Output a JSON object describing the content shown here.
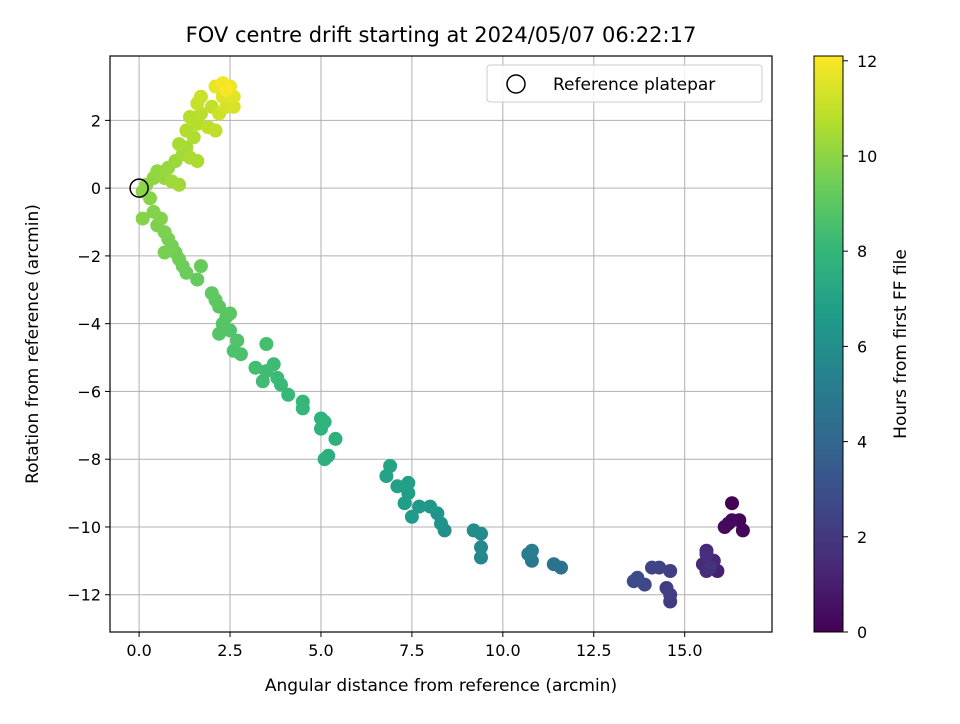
{
  "chart_data": {
    "type": "scatter",
    "title": "FOV centre drift starting at 2024/05/07 06:22:17",
    "xlabel": "Angular distance from reference (arcmin)",
    "ylabel": "Rotation from reference (arcmin)",
    "xlim": [
      -0.8,
      17.4
    ],
    "ylim": [
      -13.1,
      3.9
    ],
    "x_ticks": [
      0.0,
      2.5,
      5.0,
      7.5,
      10.0,
      12.5,
      15.0
    ],
    "x_tick_labels": [
      "0.0",
      "2.5",
      "5.0",
      "7.5",
      "10.0",
      "12.5",
      "15.0"
    ],
    "y_ticks": [
      2,
      0,
      -2,
      -4,
      -6,
      -8,
      -10,
      -12
    ],
    "y_tick_labels": [
      "2",
      "0",
      "−2",
      "−4",
      "−6",
      "−8",
      "−10",
      "−12"
    ],
    "grid": true,
    "legend_position": "top-right",
    "legend": [
      {
        "label": "Reference platepar",
        "marker": "open-circle"
      }
    ],
    "reference_point": {
      "x": 0,
      "y": 0
    },
    "colorbar": {
      "label": "Hours from first FF file",
      "range": [
        0,
        12.1
      ],
      "ticks": [
        0,
        2,
        4,
        6,
        8,
        10,
        12
      ],
      "tick_labels": [
        "0",
        "2",
        "4",
        "6",
        "8",
        "10",
        "12"
      ],
      "colormap": "viridis"
    },
    "colormap_stops": [
      "#440154",
      "#482878",
      "#3e4989",
      "#31688e",
      "#26828e",
      "#1f9e89",
      "#35b779",
      "#6ece58",
      "#b5de2b",
      "#fde725"
    ],
    "points": [
      {
        "x": 16.3,
        "y": -9.3,
        "t": 0.05
      },
      {
        "x": 16.2,
        "y": -9.9,
        "t": 0.1
      },
      {
        "x": 16.5,
        "y": -9.8,
        "t": 0.15
      },
      {
        "x": 16.6,
        "y": -10.1,
        "t": 0.2
      },
      {
        "x": 16.3,
        "y": -9.8,
        "t": 0.25
      },
      {
        "x": 16.1,
        "y": -10.0,
        "t": 0.3
      },
      {
        "x": 15.9,
        "y": -11.3,
        "t": 1.1
      },
      {
        "x": 15.8,
        "y": -11.0,
        "t": 1.3
      },
      {
        "x": 15.6,
        "y": -10.7,
        "t": 1.4
      },
      {
        "x": 15.5,
        "y": -11.1,
        "t": 1.5
      },
      {
        "x": 15.6,
        "y": -11.3,
        "t": 1.6
      },
      {
        "x": 15.6,
        "y": -10.8,
        "t": 1.65
      },
      {
        "x": 15.7,
        "y": -11.2,
        "t": 1.7
      },
      {
        "x": 14.6,
        "y": -12.2,
        "t": 2.1
      },
      {
        "x": 14.6,
        "y": -12.0,
        "t": 2.15
      },
      {
        "x": 14.5,
        "y": -11.8,
        "t": 2.2
      },
      {
        "x": 14.6,
        "y": -11.3,
        "t": 2.3
      },
      {
        "x": 14.3,
        "y": -11.2,
        "t": 2.4
      },
      {
        "x": 14.1,
        "y": -11.2,
        "t": 2.5
      },
      {
        "x": 13.9,
        "y": -11.7,
        "t": 2.6
      },
      {
        "x": 13.6,
        "y": -11.6,
        "t": 2.7
      },
      {
        "x": 13.7,
        "y": -11.5,
        "t": 2.8
      },
      {
        "x": 11.6,
        "y": -11.2,
        "t": 4.5
      },
      {
        "x": 11.4,
        "y": -11.1,
        "t": 4.6
      },
      {
        "x": 10.8,
        "y": -11.0,
        "t": 4.9
      },
      {
        "x": 10.7,
        "y": -10.8,
        "t": 5.0
      },
      {
        "x": 10.8,
        "y": -10.7,
        "t": 5.1
      },
      {
        "x": 9.4,
        "y": -10.9,
        "t": 5.6
      },
      {
        "x": 9.4,
        "y": -10.6,
        "t": 5.7
      },
      {
        "x": 9.4,
        "y": -10.2,
        "t": 5.8
      },
      {
        "x": 9.2,
        "y": -10.1,
        "t": 5.9
      },
      {
        "x": 8.4,
        "y": -10.1,
        "t": 6.1
      },
      {
        "x": 8.3,
        "y": -9.9,
        "t": 6.2
      },
      {
        "x": 8.2,
        "y": -9.6,
        "t": 6.3
      },
      {
        "x": 8.0,
        "y": -9.4,
        "t": 6.4
      },
      {
        "x": 7.7,
        "y": -9.4,
        "t": 6.5
      },
      {
        "x": 7.5,
        "y": -9.7,
        "t": 6.6
      },
      {
        "x": 7.3,
        "y": -9.3,
        "t": 6.7
      },
      {
        "x": 7.4,
        "y": -9.0,
        "t": 6.8
      },
      {
        "x": 7.4,
        "y": -8.7,
        "t": 6.85
      },
      {
        "x": 7.1,
        "y": -8.8,
        "t": 6.9
      },
      {
        "x": 6.8,
        "y": -8.5,
        "t": 7.0
      },
      {
        "x": 6.9,
        "y": -8.2,
        "t": 7.05
      },
      {
        "x": 5.2,
        "y": -7.9,
        "t": 7.6
      },
      {
        "x": 5.1,
        "y": -8.0,
        "t": 7.65
      },
      {
        "x": 5.4,
        "y": -7.4,
        "t": 7.7
      },
      {
        "x": 5.0,
        "y": -7.1,
        "t": 7.75
      },
      {
        "x": 5.0,
        "y": -6.8,
        "t": 7.8
      },
      {
        "x": 5.1,
        "y": -6.9,
        "t": 7.85
      },
      {
        "x": 4.5,
        "y": -6.5,
        "t": 8.0
      },
      {
        "x": 4.5,
        "y": -6.3,
        "t": 8.05
      },
      {
        "x": 4.1,
        "y": -6.1,
        "t": 8.1
      },
      {
        "x": 3.9,
        "y": -5.8,
        "t": 8.15
      },
      {
        "x": 3.8,
        "y": -5.6,
        "t": 8.2
      },
      {
        "x": 3.7,
        "y": -5.2,
        "t": 8.25
      },
      {
        "x": 3.5,
        "y": -5.4,
        "t": 8.3
      },
      {
        "x": 3.4,
        "y": -5.7,
        "t": 8.35
      },
      {
        "x": 3.2,
        "y": -5.3,
        "t": 8.4
      },
      {
        "x": 3.5,
        "y": -4.6,
        "t": 8.45
      },
      {
        "x": 2.8,
        "y": -4.9,
        "t": 8.6
      },
      {
        "x": 2.6,
        "y": -4.8,
        "t": 8.65
      },
      {
        "x": 2.7,
        "y": -4.5,
        "t": 8.7
      },
      {
        "x": 2.5,
        "y": -4.2,
        "t": 8.75
      },
      {
        "x": 2.3,
        "y": -4.0,
        "t": 8.8
      },
      {
        "x": 2.2,
        "y": -4.3,
        "t": 8.85
      },
      {
        "x": 2.4,
        "y": -3.8,
        "t": 8.9
      },
      {
        "x": 2.5,
        "y": -3.7,
        "t": 8.92
      },
      {
        "x": 2.2,
        "y": -3.5,
        "t": 8.95
      },
      {
        "x": 2.1,
        "y": -3.3,
        "t": 9.0
      },
      {
        "x": 2.0,
        "y": -3.1,
        "t": 9.05
      },
      {
        "x": 1.6,
        "y": -2.7,
        "t": 9.2
      },
      {
        "x": 1.7,
        "y": -2.3,
        "t": 9.25
      },
      {
        "x": 1.3,
        "y": -2.5,
        "t": 9.3
      },
      {
        "x": 1.2,
        "y": -2.3,
        "t": 9.35
      },
      {
        "x": 1.1,
        "y": -2.1,
        "t": 9.4
      },
      {
        "x": 1.0,
        "y": -1.9,
        "t": 9.45
      },
      {
        "x": 0.9,
        "y": -1.7,
        "t": 9.5
      },
      {
        "x": 0.8,
        "y": -1.5,
        "t": 9.55
      },
      {
        "x": 0.7,
        "y": -1.9,
        "t": 9.6
      },
      {
        "x": 0.7,
        "y": -1.3,
        "t": 9.65
      },
      {
        "x": 0.5,
        "y": -1.1,
        "t": 9.7
      },
      {
        "x": 0.6,
        "y": -0.9,
        "t": 9.75
      },
      {
        "x": 0.4,
        "y": -0.7,
        "t": 9.8
      },
      {
        "x": 0.1,
        "y": -0.9,
        "t": 9.85
      },
      {
        "x": 0.3,
        "y": -0.3,
        "t": 9.9
      },
      {
        "x": 0.1,
        "y": -0.1,
        "t": 9.95
      },
      {
        "x": 0.2,
        "y": 0.1,
        "t": 10.0
      },
      {
        "x": 0.4,
        "y": 0.3,
        "t": 10.05
      },
      {
        "x": 0.5,
        "y": 0.5,
        "t": 10.1
      },
      {
        "x": 0.7,
        "y": 0.3,
        "t": 10.15
      },
      {
        "x": 0.8,
        "y": 0.6,
        "t": 10.2
      },
      {
        "x": 1.0,
        "y": 0.8,
        "t": 10.25
      },
      {
        "x": 0.9,
        "y": 0.2,
        "t": 10.3
      },
      {
        "x": 1.1,
        "y": 0.1,
        "t": 10.35
      },
      {
        "x": 1.2,
        "y": 1.0,
        "t": 10.4
      },
      {
        "x": 1.3,
        "y": 1.2,
        "t": 10.45
      },
      {
        "x": 1.1,
        "y": 1.3,
        "t": 10.5
      },
      {
        "x": 1.4,
        "y": 0.9,
        "t": 10.55
      },
      {
        "x": 1.6,
        "y": 0.8,
        "t": 10.6
      },
      {
        "x": 1.5,
        "y": 1.5,
        "t": 10.65
      },
      {
        "x": 1.3,
        "y": 1.7,
        "t": 10.7
      },
      {
        "x": 1.6,
        "y": 1.9,
        "t": 10.75
      },
      {
        "x": 1.4,
        "y": 2.1,
        "t": 10.8
      },
      {
        "x": 1.7,
        "y": 2.2,
        "t": 10.85
      },
      {
        "x": 1.9,
        "y": 1.8,
        "t": 10.9
      },
      {
        "x": 2.1,
        "y": 1.7,
        "t": 10.95
      },
      {
        "x": 2.0,
        "y": 2.4,
        "t": 11.0
      },
      {
        "x": 1.6,
        "y": 2.5,
        "t": 11.1
      },
      {
        "x": 1.7,
        "y": 2.7,
        "t": 11.15
      },
      {
        "x": 2.2,
        "y": 2.2,
        "t": 11.2
      },
      {
        "x": 2.4,
        "y": 2.4,
        "t": 11.3
      },
      {
        "x": 2.6,
        "y": 2.4,
        "t": 11.4
      },
      {
        "x": 2.3,
        "y": 2.7,
        "t": 11.5
      },
      {
        "x": 2.6,
        "y": 2.7,
        "t": 11.6
      },
      {
        "x": 2.1,
        "y": 3.0,
        "t": 11.7
      },
      {
        "x": 2.5,
        "y": 3.0,
        "t": 11.8
      },
      {
        "x": 2.3,
        "y": 3.1,
        "t": 11.9
      },
      {
        "x": 2.4,
        "y": 2.9,
        "t": 12.0
      }
    ]
  }
}
